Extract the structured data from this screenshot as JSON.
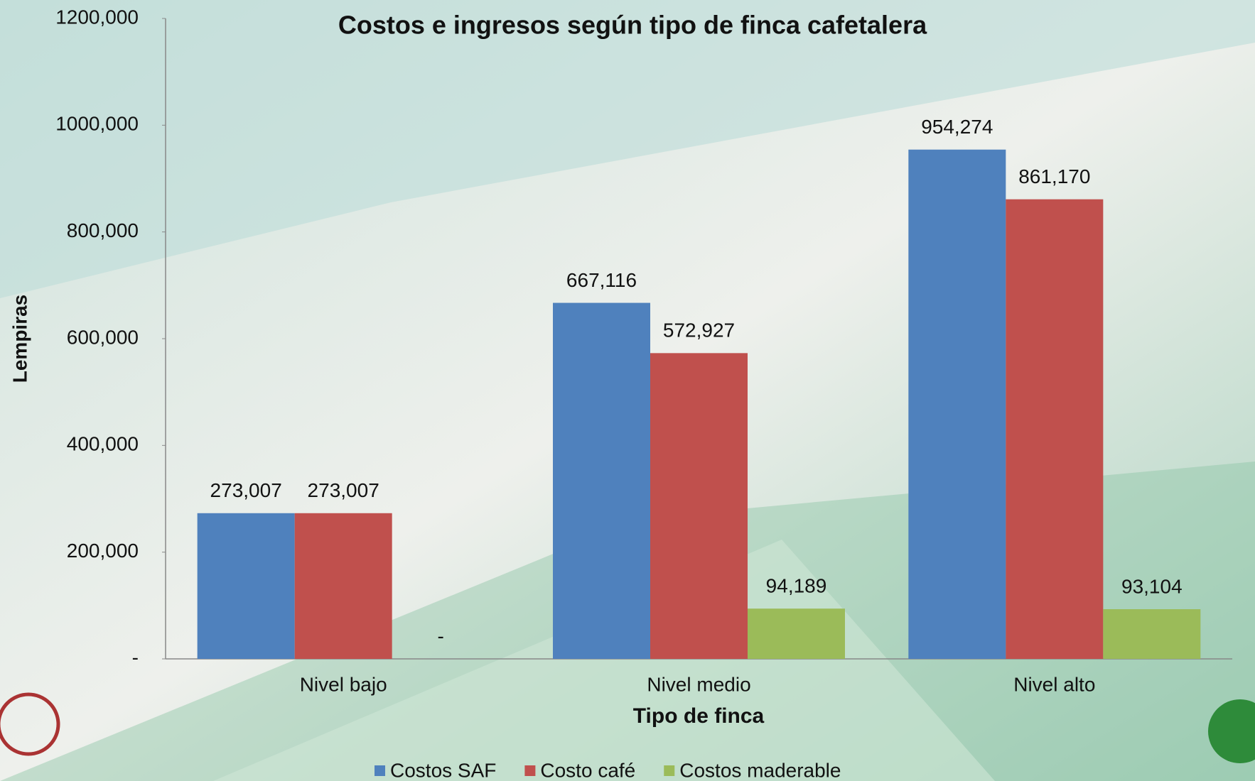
{
  "chart_data": {
    "type": "bar",
    "title": "Costos e ingresos según tipo de finca cafetalera",
    "x_label": "Tipo de finca",
    "y_label": "Lempiras",
    "categories": [
      "Nivel bajo",
      "Nivel medio",
      "Nivel alto"
    ],
    "series": [
      {
        "name": "Costos SAF",
        "color": "#4f81bd",
        "values": [
          273007,
          667116,
          954274
        ],
        "value_labels": [
          "273,007",
          "667,116",
          "954,274"
        ]
      },
      {
        "name": "Costo café",
        "color": "#c0504d",
        "values": [
          273007,
          572927,
          861170
        ],
        "value_labels": [
          "273,007",
          "572,927",
          "861,170"
        ]
      },
      {
        "name": "Costos maderable",
        "color": "#9bbb59",
        "values": [
          0,
          94189,
          93104
        ],
        "value_labels": [
          "-",
          "94,189",
          "93,104"
        ]
      }
    ],
    "ylim": [
      0,
      1200000
    ],
    "yticks": [
      {
        "value": 0,
        "label": "-"
      },
      {
        "value": 200000,
        "label": "200,000"
      },
      {
        "value": 400000,
        "label": "400,000"
      },
      {
        "value": 600000,
        "label": "600,000"
      },
      {
        "value": 800000,
        "label": "800,000"
      },
      {
        "value": 1000000,
        "label": "1000,000"
      },
      {
        "value": 1200000,
        "label": "1200,000"
      }
    ],
    "grid": false,
    "legend": "bottom"
  }
}
